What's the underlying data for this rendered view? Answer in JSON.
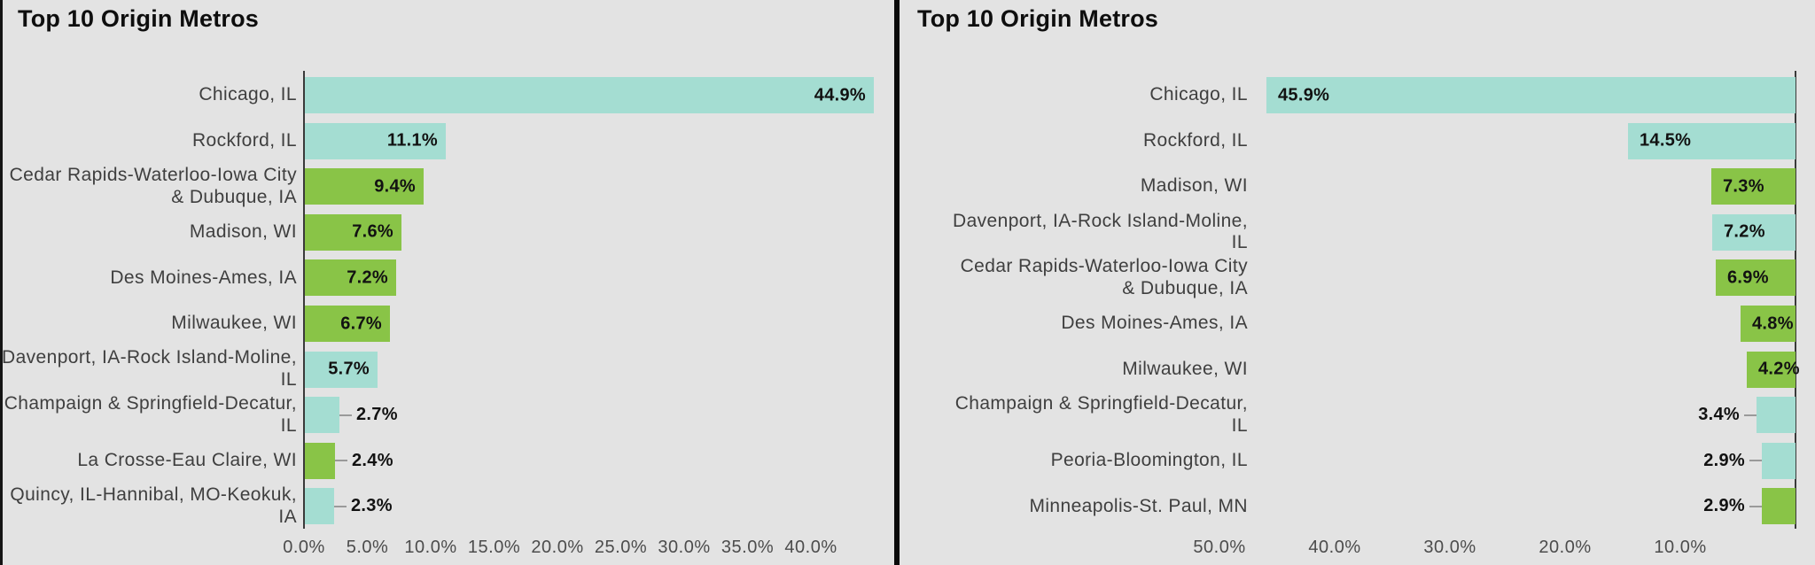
{
  "colors": {
    "background": "#e3e3e3",
    "teal": "#a4ddd2",
    "green": "#89c447",
    "axis": "#3a3a3a",
    "divider": "#0a0a0a",
    "leader": "#9a9a9a",
    "title_text": "#0e0e0e",
    "category_text": "#3f3f3f",
    "value_text": "#121212",
    "tick_text": "#4c4c4c"
  },
  "chart_data": [
    {
      "type": "bar",
      "orientation": "horizontal",
      "bar_direction": "left-to-right",
      "title": "Top 10 Origin Metros",
      "categories": [
        "Chicago, IL",
        "Rockford, IL",
        "Cedar Rapids-Waterloo-Iowa City\n& Dubuque, IA",
        "Madison, WI",
        "Des Moines-Ames, IA",
        "Milwaukee, WI",
        "Davenport, IA-Rock Island-Moline,\nIL",
        "Champaign & Springfield-Decatur,\nIL",
        "La Crosse-Eau Claire, WI",
        "Quincy, IL-Hannibal, MO-Keokuk,\nIA"
      ],
      "values": [
        44.9,
        11.1,
        9.4,
        7.6,
        7.2,
        6.7,
        5.7,
        2.7,
        2.4,
        2.3
      ],
      "value_labels": [
        "44.9%",
        "11.1%",
        "9.4%",
        "7.6%",
        "7.2%",
        "6.7%",
        "5.7%",
        "2.7%",
        "2.4%",
        "2.3%"
      ],
      "bar_colors": [
        "teal",
        "teal",
        "green",
        "green",
        "green",
        "green",
        "teal",
        "teal",
        "green",
        "teal"
      ],
      "x_ticks": [
        "0.0%",
        "5.0%",
        "10.0%",
        "15.0%",
        "20.0%",
        "25.0%",
        "30.0%",
        "35.0%",
        "40.0%"
      ],
      "xlim": [
        0,
        46.5
      ],
      "grid": "off",
      "legend": "none"
    },
    {
      "type": "bar",
      "orientation": "horizontal",
      "bar_direction": "right-to-left",
      "title": "Top 10 Origin Metros",
      "categories": [
        "Chicago, IL",
        "Rockford, IL",
        "Madison, WI",
        "Davenport, IA-Rock Island-Moline,\nIL",
        "Cedar Rapids-Waterloo-Iowa City\n& Dubuque, IA",
        "Des Moines-Ames, IA",
        "Milwaukee, WI",
        "Champaign & Springfield-Decatur,\nIL",
        "Peoria-Bloomington, IL",
        "Minneapolis-St. Paul, MN"
      ],
      "values": [
        45.9,
        14.5,
        7.3,
        7.2,
        6.9,
        4.8,
        4.2,
        3.4,
        2.9,
        2.9
      ],
      "value_labels": [
        "45.9%",
        "14.5%",
        "7.3%",
        "7.2%",
        "6.9%",
        "4.8%",
        "4.2%",
        "3.4%",
        "2.9%",
        "2.9%"
      ],
      "bar_colors": [
        "teal",
        "teal",
        "green",
        "teal",
        "green",
        "green",
        "green",
        "teal",
        "teal",
        "green"
      ],
      "x_ticks": [
        "50.0%",
        "40.0%",
        "30.0%",
        "20.0%",
        "10.0%"
      ],
      "xlim": [
        0,
        52
      ],
      "grid": "off",
      "legend": "none"
    }
  ]
}
